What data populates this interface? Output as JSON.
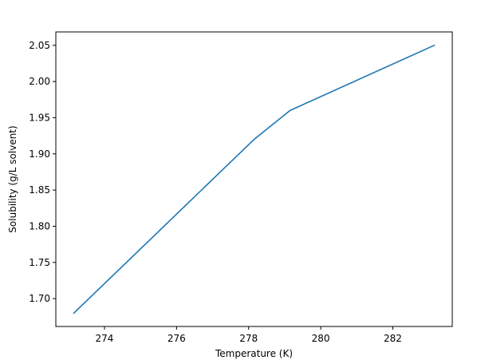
{
  "chart_data": {
    "type": "line",
    "title": "",
    "xlabel": "Temperature (K)",
    "ylabel": "Solubility (g/L solvent)",
    "xlim": [
      272.65,
      283.65
    ],
    "ylim": [
      1.6615,
      2.0685
    ],
    "xticks": [
      274,
      276,
      278,
      280,
      282
    ],
    "yticks": [
      1.7,
      1.75,
      1.8,
      1.85,
      1.9,
      1.95,
      2.0,
      2.05
    ],
    "xtick_labels": [
      "274",
      "276",
      "278",
      "280",
      "282"
    ],
    "ytick_labels": [
      "1.70",
      "1.75",
      "1.80",
      "1.85",
      "1.90",
      "1.95",
      "2.00",
      "2.05"
    ],
    "grid": false,
    "series": [
      {
        "color": "#1f77b4",
        "x": [
          273.15,
          278.15,
          279.15,
          283.15
        ],
        "y": [
          1.68,
          1.92,
          1.96,
          2.05
        ]
      }
    ]
  }
}
